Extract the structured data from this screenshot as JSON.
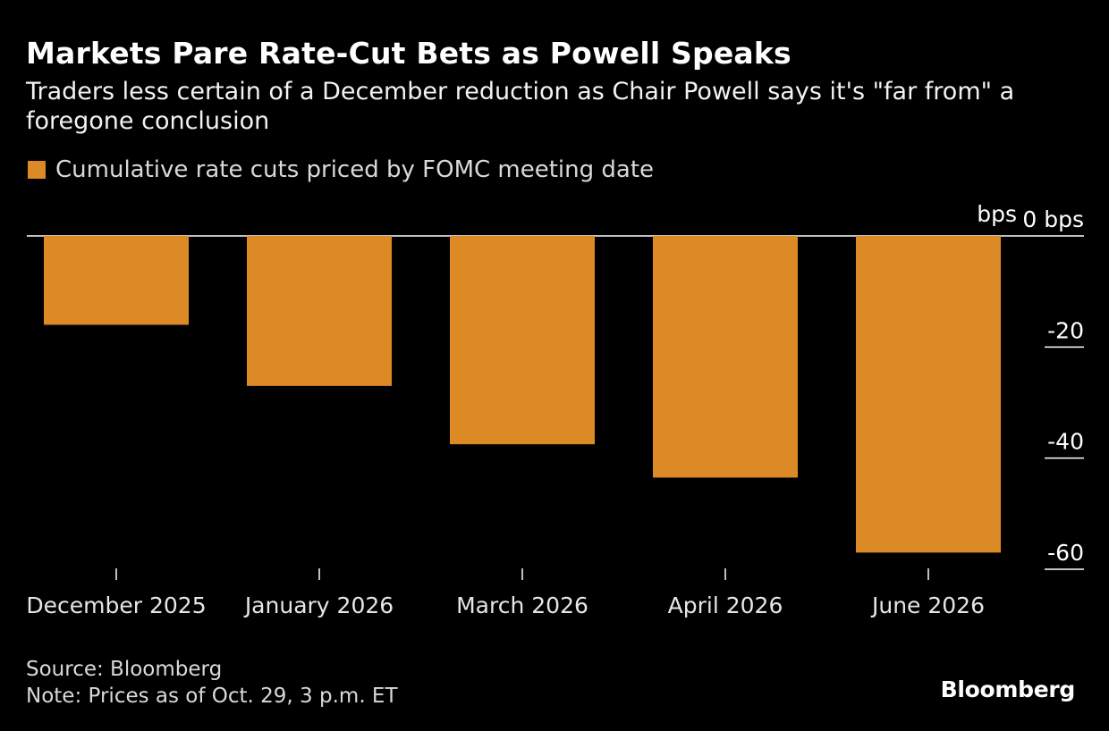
{
  "header": {
    "title": "Markets Pare Rate-Cut Bets as Powell Speaks",
    "subtitle": "Traders less certain of a December reduction as Chair Powell says it's \"far from\" a foregone conclusion"
  },
  "legend": {
    "label": "Cumulative rate cuts priced by FOMC meeting date"
  },
  "colors": {
    "bar": "#dc8a26",
    "background": "#000000",
    "gridline": "#ffffff",
    "text": "#ffffff",
    "muted_text": "#d9d9d9"
  },
  "chart_data": {
    "type": "bar",
    "categories": [
      "December 2025",
      "January 2026",
      "March 2026",
      "April 2026",
      "June 2026"
    ],
    "values": [
      -16,
      -27,
      -37.5,
      -43.5,
      -57
    ],
    "ylim": [
      -60,
      0
    ],
    "yticks": [
      0,
      -20,
      -40,
      -60
    ],
    "ytick_labels": [
      "0 bps",
      "-20",
      "-40",
      "-60"
    ],
    "yunit_label": "bps",
    "y_axis_side": "right",
    "legend_position": "top-left",
    "grid": true
  },
  "footer": {
    "source": "Source: Bloomberg",
    "note": "Note: Prices as of Oct. 29, 3 p.m. ET",
    "logo": "Bloomberg"
  }
}
